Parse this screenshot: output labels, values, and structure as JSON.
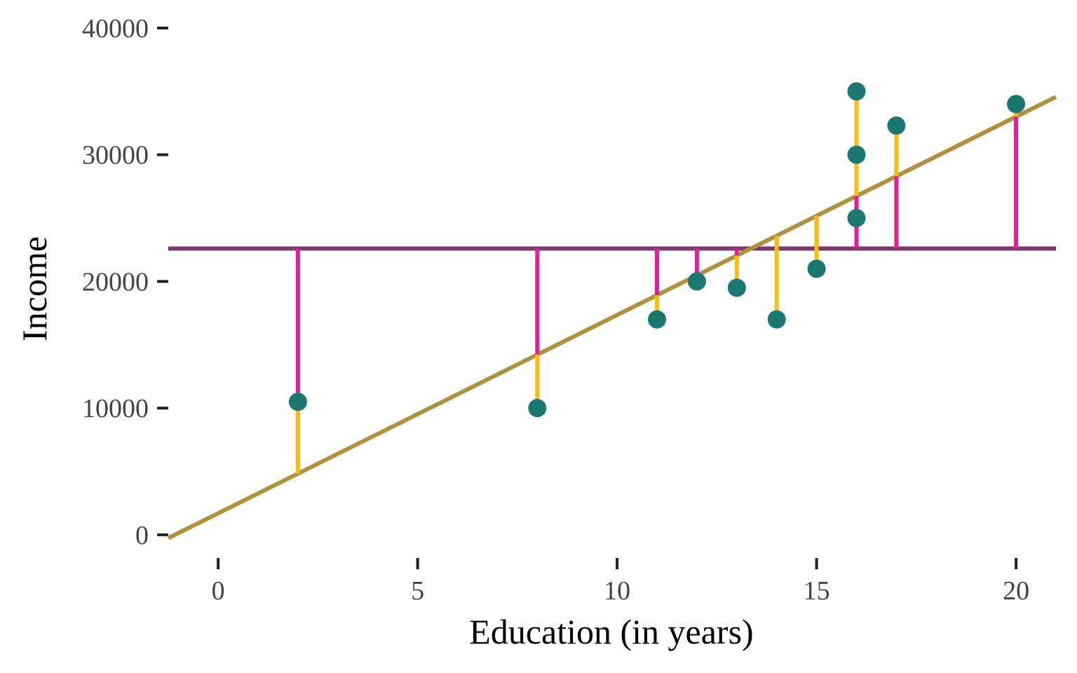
{
  "chart_data": {
    "type": "scatter",
    "title": "",
    "xlabel": "Education (in years)",
    "ylabel": "Income",
    "xlim": [
      -1.25,
      21
    ],
    "ylim": [
      -1500,
      40000
    ],
    "x_ticks": [
      0,
      5,
      10,
      15,
      20
    ],
    "y_ticks": [
      0,
      10000,
      20000,
      30000,
      40000
    ],
    "grid": false,
    "legend": "none",
    "mean_income": 22600,
    "regression": {
      "intercept": 1700,
      "slope": 1565
    },
    "points": [
      {
        "x": 2,
        "y": 10500
      },
      {
        "x": 8,
        "y": 10000
      },
      {
        "x": 11,
        "y": 17000
      },
      {
        "x": 12,
        "y": 20000
      },
      {
        "x": 13,
        "y": 19500
      },
      {
        "x": 14,
        "y": 17000
      },
      {
        "x": 15,
        "y": 21000
      },
      {
        "x": 16,
        "y": 25000
      },
      {
        "x": 16,
        "y": 30000
      },
      {
        "x": 16,
        "y": 35000
      },
      {
        "x": 17,
        "y": 32300
      },
      {
        "x": 20,
        "y": 34000
      }
    ],
    "colors": {
      "points": "#1a7870",
      "regression_line": "#b0923e",
      "mean_line": "#7b3a6b",
      "residual_to_fit": "#ffbb0f",
      "deviation_to_mean": "#e11ea0",
      "axis": "#222222"
    }
  }
}
